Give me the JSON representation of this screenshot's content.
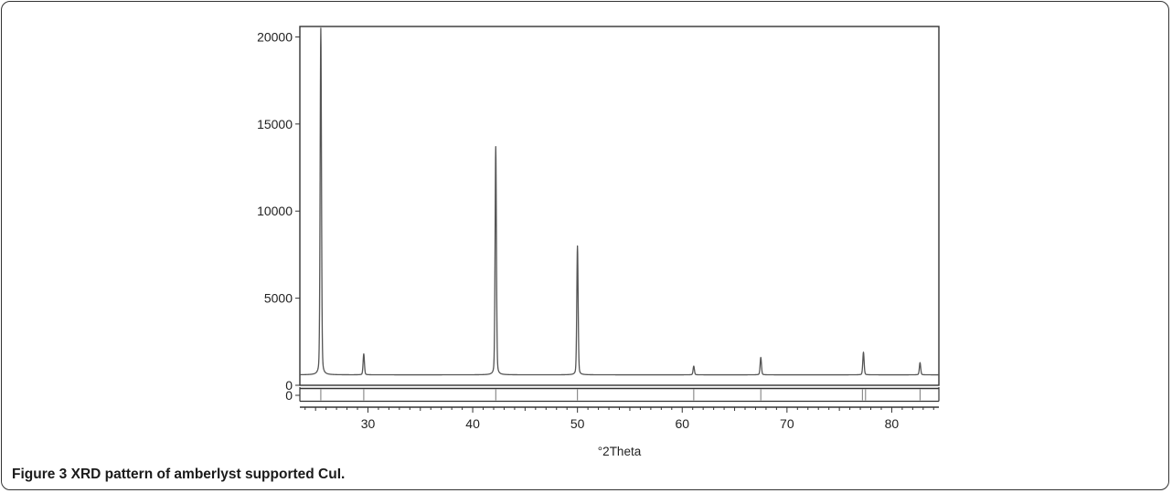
{
  "figure": {
    "label": "Figure 3",
    "caption": "XRD pattern of amberlyst supported CuI."
  },
  "chart_data": {
    "type": "line",
    "title": "",
    "xlabel": "°2Theta",
    "ylabel": "",
    "xlim": [
      23.5,
      84.5
    ],
    "ylim": [
      0,
      20600
    ],
    "x_ticks": [
      30,
      40,
      50,
      60,
      70,
      80
    ],
    "y_ticks": [
      0,
      5000,
      10000,
      15000,
      20000
    ],
    "baseline": 600,
    "peaks": [
      {
        "x": 25.5,
        "y": 20500
      },
      {
        "x": 29.6,
        "y": 1800
      },
      {
        "x": 42.2,
        "y": 13700
      },
      {
        "x": 50.0,
        "y": 8000
      },
      {
        "x": 61.1,
        "y": 1100
      },
      {
        "x": 67.5,
        "y": 1600
      },
      {
        "x": 77.3,
        "y": 1900
      },
      {
        "x": 82.7,
        "y": 1300
      }
    ],
    "residual_panel": {
      "y_tick": 0,
      "reference_positions": [
        25.5,
        29.6,
        42.2,
        50.0,
        61.1,
        67.5,
        77.2,
        77.5,
        82.7
      ]
    },
    "colors": {
      "line": "#555555",
      "axis": "#333333",
      "text": "#222222"
    }
  }
}
